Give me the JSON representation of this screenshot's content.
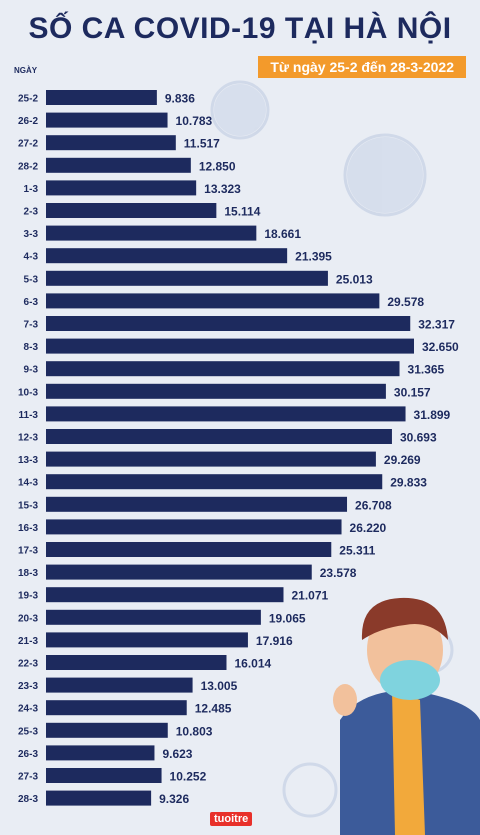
{
  "title": "SỐ CA COVID-19 TẠI HÀ NỘI",
  "subtitle": "Từ ngày 25-2 đến 28-3-2022",
  "logo_text": "tuoitre",
  "colors": {
    "bar": "#1d2a5e",
    "text": "#1d2a5e",
    "accent": "#f39a2b",
    "background": "#e9edf4"
  },
  "chart_data": {
    "type": "bar",
    "orientation": "horizontal",
    "title": "SỐ CA COVID-19 TẠI HÀ NỘI",
    "subtitle": "Từ ngày 25-2 đến 28-3-2022",
    "ylabel": "NGÀY",
    "xlim": [
      0,
      32650
    ],
    "categories": [
      "25-2",
      "26-2",
      "27-2",
      "28-2",
      "1-3",
      "2-3",
      "3-3",
      "4-3",
      "5-3",
      "6-3",
      "7-3",
      "8-3",
      "9-3",
      "10-3",
      "11-3",
      "12-3",
      "13-3",
      "14-3",
      "15-3",
      "16-3",
      "17-3",
      "18-3",
      "19-3",
      "20-3",
      "21-3",
      "22-3",
      "23-3",
      "24-3",
      "25-3",
      "26-3",
      "27-3",
      "28-3"
    ],
    "values": [
      9836,
      10783,
      11517,
      12850,
      13323,
      15114,
      18661,
      21395,
      25013,
      29578,
      32317,
      32650,
      31365,
      30157,
      31899,
      30693,
      29269,
      29833,
      26708,
      26220,
      25311,
      23578,
      21071,
      19065,
      17916,
      16014,
      13005,
      12485,
      10803,
      9623,
      10252,
      9326
    ],
    "value_labels": [
      "9.836",
      "10.783",
      "11.517",
      "12.850",
      "13.323",
      "15.114",
      "18.661",
      "21.395",
      "25.013",
      "29.578",
      "32.317",
      "32.650",
      "31.365",
      "30.157",
      "31.899",
      "30.693",
      "29.269",
      "29.833",
      "26.708",
      "26.220",
      "25.311",
      "23.578",
      "21.071",
      "19.065",
      "17.916",
      "16.014",
      "13.005",
      "12.485",
      "10.803",
      "9.623",
      "10.252",
      "9.326"
    ],
    "grid": false,
    "legend": "none"
  }
}
